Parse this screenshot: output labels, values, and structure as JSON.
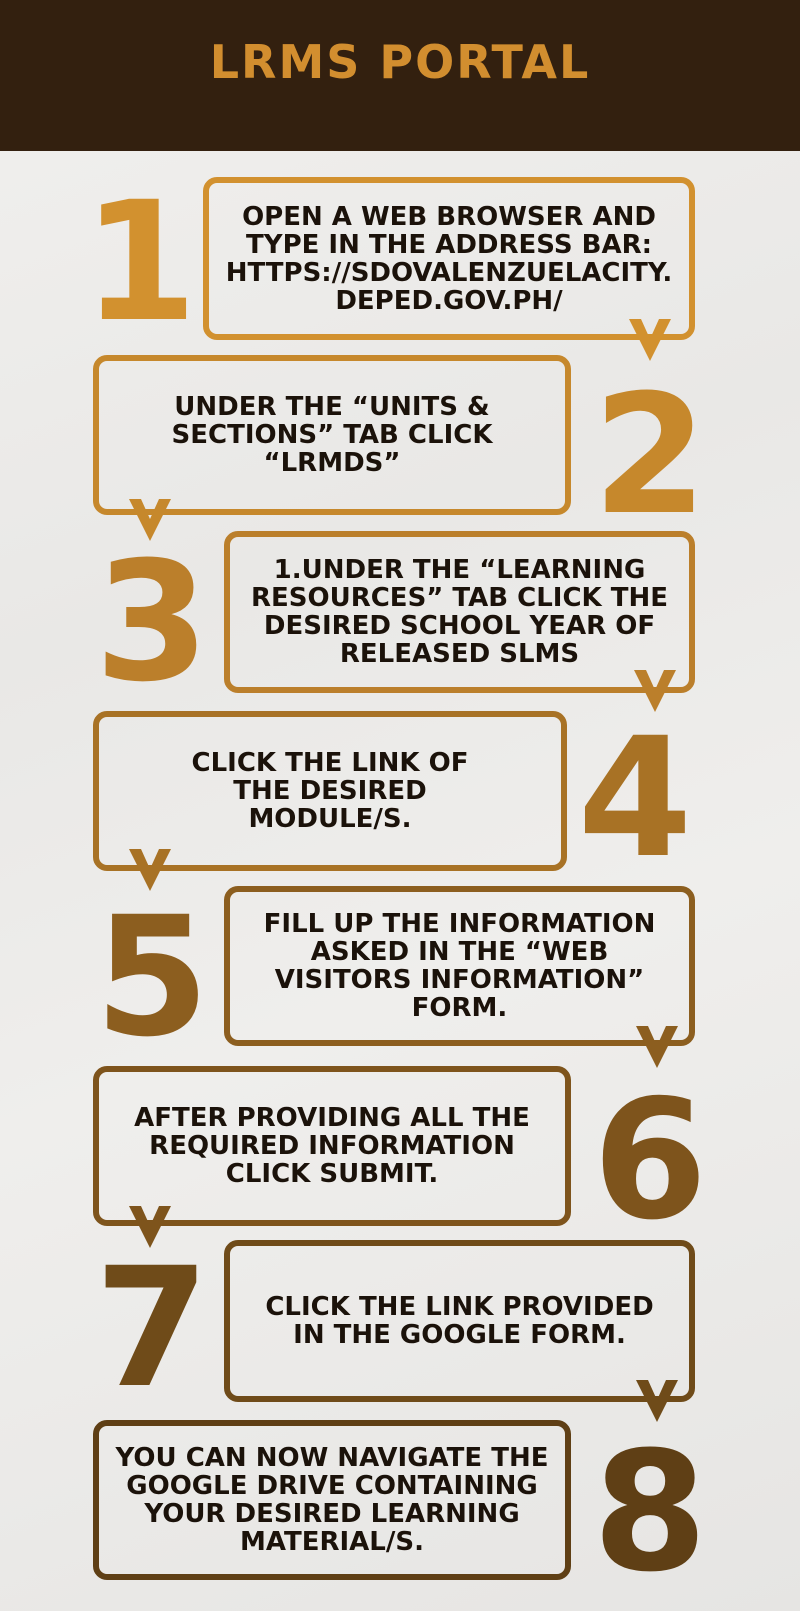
{
  "header": {
    "title": "LRMS PORTAL"
  },
  "colors": {
    "header_bg": "#33200f",
    "title": "#d28e2f"
  },
  "steps": [
    {
      "number": "1",
      "text": "OPEN A WEB BROWSER AND TYPE IN THE ADDRESS BAR: HTTPS://SDOVALENZUELACITY. DEPED.GOV.PH/",
      "color": "#d2912f"
    },
    {
      "number": "2",
      "text": "UNDER THE “UNITS & SECTIONS” TAB CLICK “LRMDS”",
      "color": "#c6882c"
    },
    {
      "number": "3",
      "text": "1.UNDER THE “LEARNING RESOURCES” TAB CLICK THE DESIRED SCHOOL YEAR OF RELEASED SLMS",
      "color": "#bb7f2b"
    },
    {
      "number": "4",
      "text": "CLICK THE LINK OF THE DESIRED MODULE/S.",
      "color": "#a87225"
    },
    {
      "number": "5",
      "text": "FILL UP THE INFORMATION ASKED IN THE “WEB VISITORS INFORMATION” FORM.",
      "color": "#8c5e1f"
    },
    {
      "number": "6",
      "text": "AFTER PROVIDING ALL THE REQUIRED INFORMATION CLICK SUBMIT.",
      "color": "#7e541c"
    },
    {
      "number": "7",
      "text": "CLICK THE LINK PROVIDED IN THE GOOGLE FORM.",
      "color": "#6f4b19"
    },
    {
      "number": "8",
      "text": "YOU CAN NOW NAVIGATE THE GOOGLE DRIVE CONTAINING YOUR DESIRED LEARNING MATERIAL/S.",
      "color": "#5f3f15"
    }
  ]
}
